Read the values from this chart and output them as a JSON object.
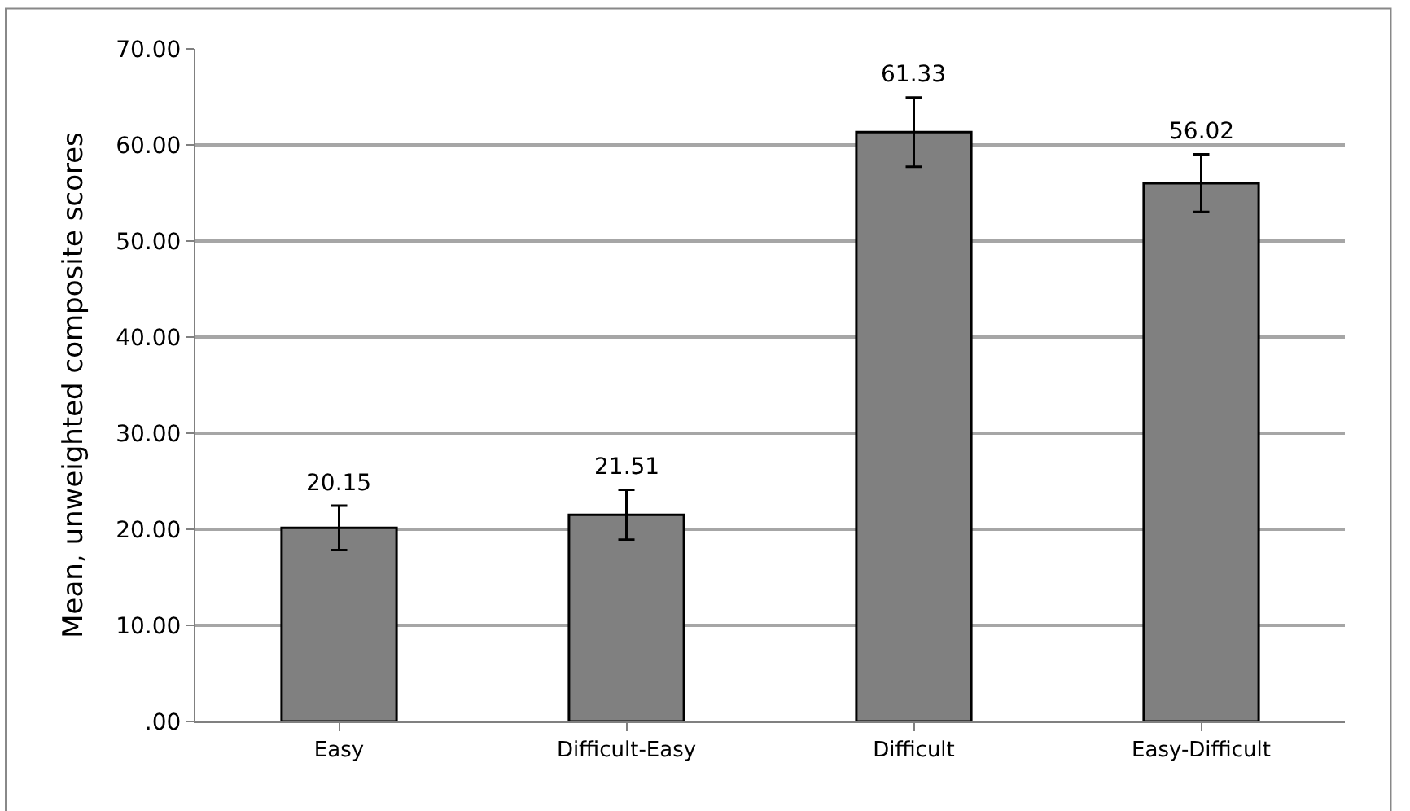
{
  "chart_data": {
    "type": "bar",
    "ylabel": "Mean, unweighted composite scores",
    "categories": [
      "Easy",
      "Difficult-Easy",
      "Difficult",
      "Easy-Difficult"
    ],
    "values": [
      20.15,
      21.51,
      61.33,
      56.02
    ],
    "errors": [
      2.3,
      2.6,
      3.6,
      3.0
    ],
    "color": "#808080",
    "ylim": [
      0,
      70
    ],
    "yticks": [
      {
        "value": 0,
        "label": ".00"
      },
      {
        "value": 10,
        "label": "10.00"
      },
      {
        "value": 20,
        "label": "20.00"
      },
      {
        "value": 30,
        "label": "30.00"
      },
      {
        "value": 40,
        "label": "40.00"
      },
      {
        "value": 50,
        "label": "50.00"
      },
      {
        "value": 60,
        "label": "60.00"
      },
      {
        "value": 70,
        "label": "70.00"
      }
    ],
    "grid": "y",
    "data_labels": true,
    "legend": false
  }
}
